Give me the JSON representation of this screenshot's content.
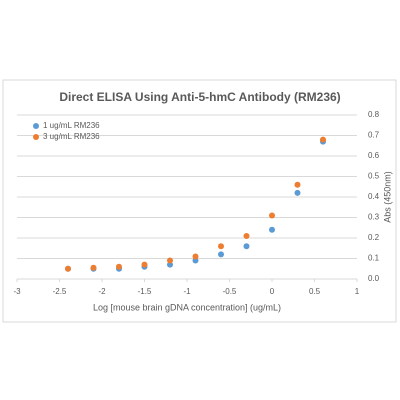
{
  "chart_data": {
    "type": "scatter",
    "title": "Direct ELISA Using Anti-5-hmC Antibody (RM236)",
    "x_label": "Log [mouse brain gDNA concentration] (ug/mL)",
    "y_label": "Abs (450nm)",
    "xlim": [
      -3,
      1
    ],
    "xticks": [
      -3,
      -2.5,
      -2,
      -1.5,
      -1,
      -0.5,
      0,
      0.5,
      1
    ],
    "ylim": [
      0,
      0.8
    ],
    "yticks": [
      {
        "value": 0,
        "label": "0.0"
      },
      0.1,
      0.2,
      0.3,
      0.4,
      0.5,
      0.6,
      0.7,
      0.8
    ],
    "grid": true,
    "legend": "upper left",
    "series": [
      {
        "name": "1 ug/mL RM236",
        "color": "#5b9bd5",
        "x": [
          -2.4,
          -2.1,
          -1.8,
          -1.5,
          -1.2,
          -0.9,
          -0.6,
          -0.3,
          0,
          0.3,
          0.6
        ],
        "values": [
          0.05,
          0.05,
          0.05,
          0.06,
          0.07,
          0.09,
          0.12,
          0.16,
          0.24,
          0.42,
          0.67
        ]
      },
      {
        "name": "3 ug/mL RM236",
        "color": "#ed7d31",
        "x": [
          -2.4,
          -2.1,
          -1.8,
          -1.5,
          -1.2,
          -0.9,
          -0.6,
          -0.3,
          0,
          0.3,
          0.6
        ],
        "values": [
          0.05,
          0.055,
          0.06,
          0.07,
          0.09,
          0.11,
          0.16,
          0.21,
          0.31,
          0.46,
          0.68
        ]
      }
    ]
  }
}
